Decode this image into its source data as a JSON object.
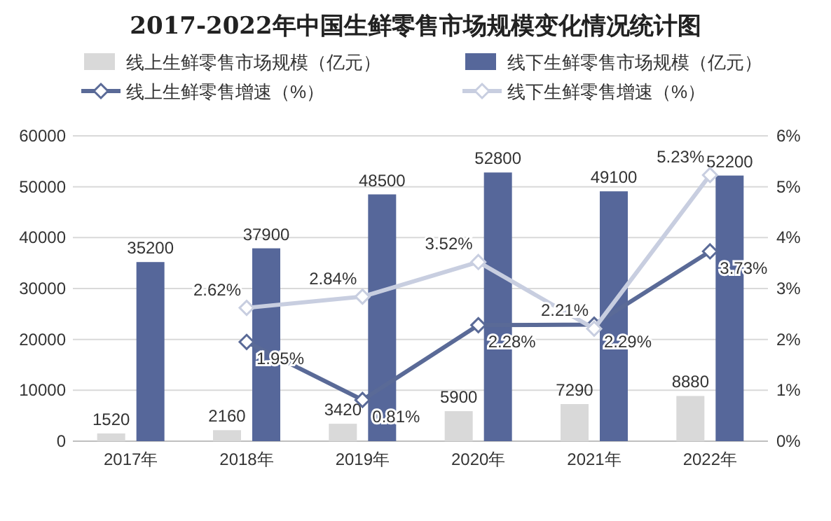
{
  "chart_data": {
    "type": "bar",
    "title": "2017-2022年中国生鲜零售市场规模变化情况统计图",
    "categories": [
      "2017年",
      "2018年",
      "2019年",
      "2020年",
      "2021年",
      "2022年"
    ],
    "series": [
      {
        "name": "线上生鲜零售市场规模（亿元）",
        "color": "#d9d9d9",
        "values": [
          1520,
          2160,
          3420,
          5900,
          7290,
          8880
        ],
        "value_labels": [
          "1520",
          "2160",
          "3420",
          "5900",
          "7290",
          "8880"
        ]
      },
      {
        "name": "线下生鲜零售市场规模（亿元）",
        "color": "#56679a",
        "values": [
          35200,
          37900,
          48500,
          52800,
          49100,
          52200
        ],
        "value_labels": [
          "35200",
          "37900",
          "48500",
          "52800",
          "49100",
          "52200"
        ]
      },
      {
        "name": "线上生鲜零售增速（%）",
        "type": "line",
        "axis": "y2",
        "color": "#5a6a97",
        "values": [
          null,
          1.95,
          0.81,
          2.28,
          2.29,
          3.73
        ],
        "value_labels": [
          null,
          "1.95%",
          "0.81%",
          "2.28%",
          "2.29%",
          "3.73%"
        ]
      },
      {
        "name": "线下生鲜零售增速（%）",
        "type": "line",
        "axis": "y2",
        "color": "#c8cee0",
        "values": [
          null,
          2.62,
          2.84,
          3.52,
          2.21,
          5.23
        ],
        "value_labels": [
          null,
          "2.62%",
          "2.84%",
          "3.52%",
          "2.21%",
          "5.23%"
        ]
      }
    ],
    "ylim": [
      0,
      60000
    ],
    "yticks": [
      0,
      10000,
      20000,
      30000,
      40000,
      50000,
      60000
    ],
    "y2lim": [
      0,
      6
    ],
    "y2ticks": [
      {
        "value": 0,
        "label": "0%"
      },
      {
        "value": 1,
        "label": "1%"
      },
      {
        "value": 2,
        "label": "2%"
      },
      {
        "value": 3,
        "label": "3%"
      },
      {
        "value": 4,
        "label": "4%"
      },
      {
        "value": 5,
        "label": "5%"
      },
      {
        "value": 6,
        "label": "6%"
      }
    ],
    "grid": "y",
    "legend": "top",
    "marker": "diamond",
    "line_style": "solid"
  }
}
